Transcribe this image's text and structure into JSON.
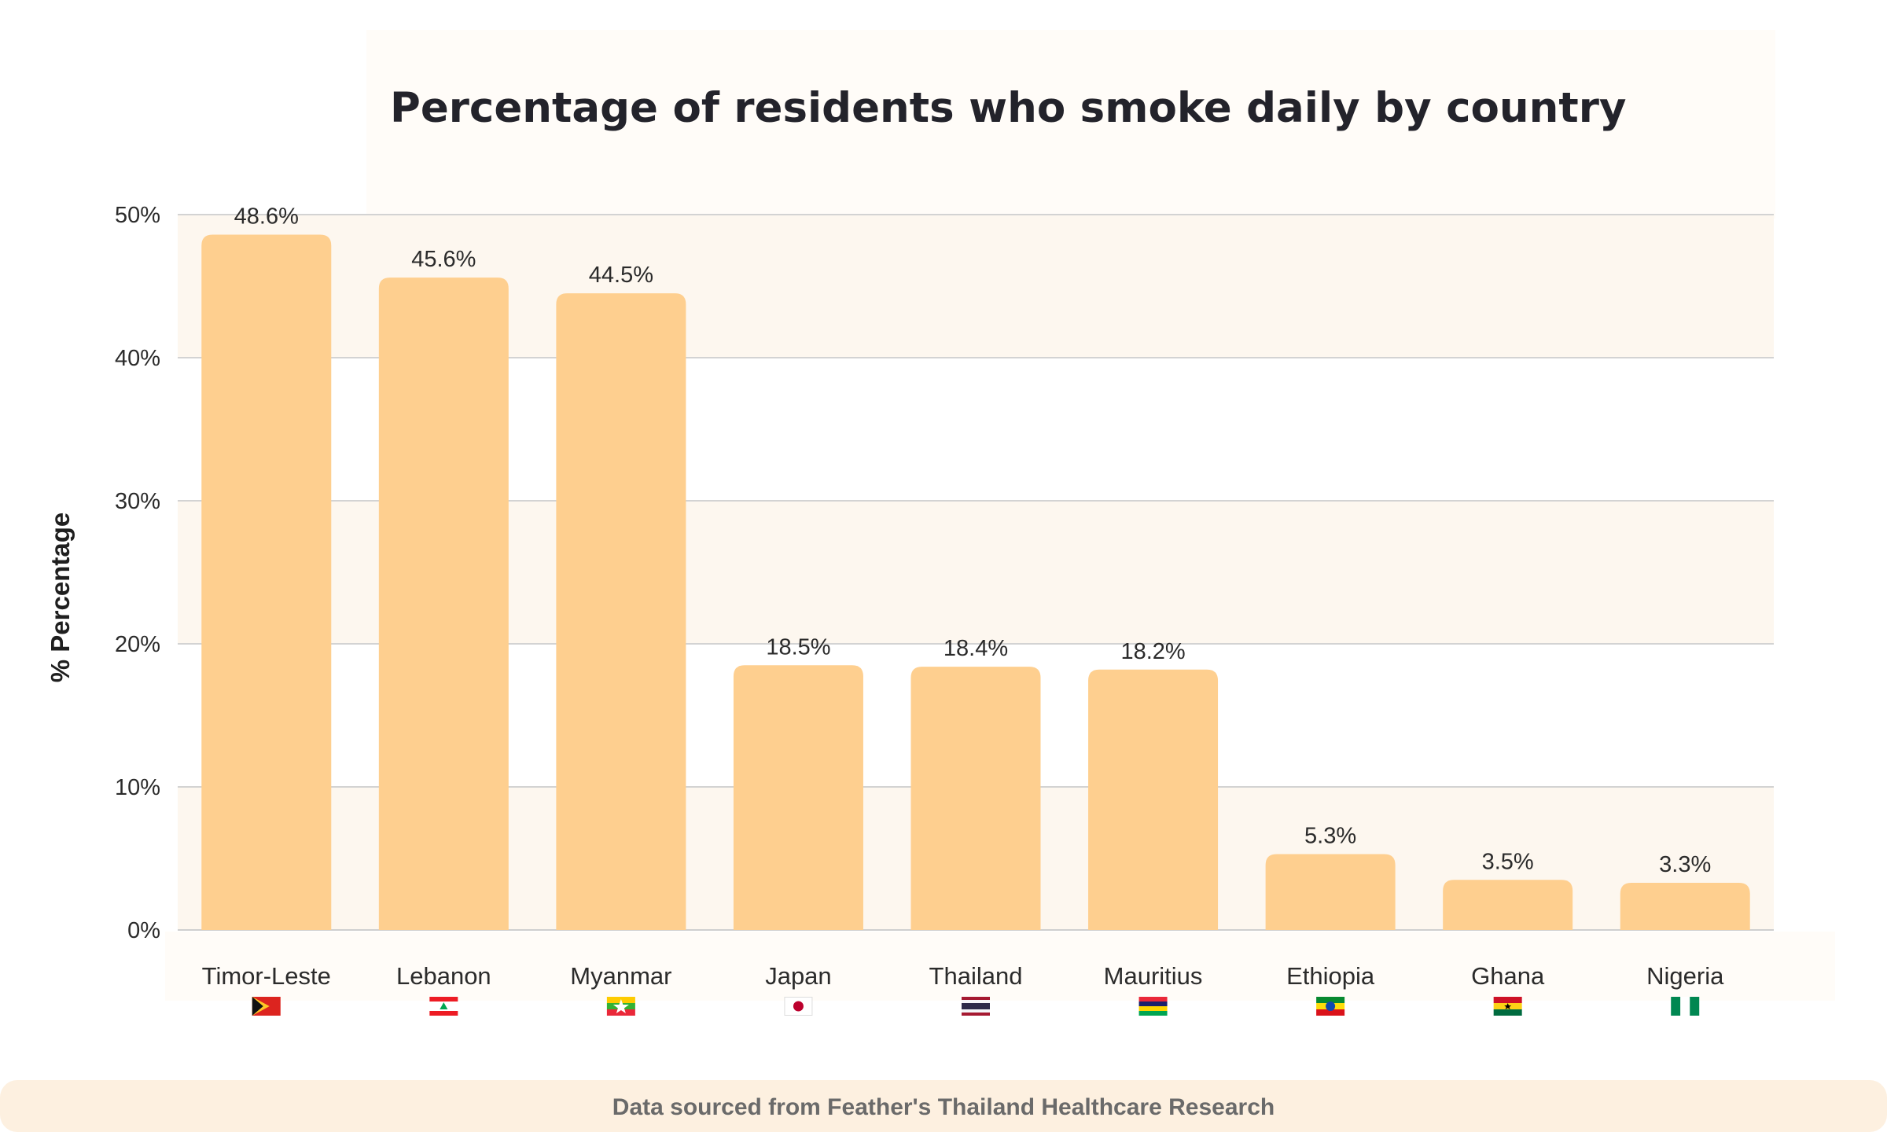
{
  "chart_data": {
    "type": "bar",
    "title": "Percentage of residents who smoke daily by country",
    "ylabel": "% Percentage",
    "xlabel": "",
    "ylim": [
      0,
      50
    ],
    "yticks": [
      0,
      10,
      20,
      30,
      40,
      50
    ],
    "ytick_labels": [
      "0%",
      "10%",
      "20%",
      "30%",
      "40%",
      "50%"
    ],
    "grid": true,
    "categories": [
      "Timor-Leste",
      "Lebanon",
      "Myanmar",
      "Japan",
      "Thailand",
      "Mauritius",
      "Ethiopia",
      "Ghana",
      "Nigeria"
    ],
    "values": [
      48.6,
      45.6,
      44.5,
      18.5,
      18.4,
      18.2,
      5.3,
      3.5,
      3.3
    ],
    "value_labels": [
      "48.6%",
      "45.6%",
      "44.5%",
      "18.5%",
      "18.4%",
      "18.2%",
      "5.3%",
      "3.5%",
      "3.3%"
    ],
    "flags": [
      "timor-leste-flag-icon",
      "lebanon-flag-icon",
      "myanmar-flag-icon",
      "japan-flag-icon",
      "thailand-flag-icon",
      "mauritius-flag-icon",
      "ethiopia-flag-icon",
      "ghana-flag-icon",
      "nigeria-flag-icon"
    ],
    "bar_color": "#fecf8f",
    "band_color": "#fdf7ef"
  },
  "footer": {
    "text": "Data sourced from Feather's Thailand Healthcare Research"
  }
}
